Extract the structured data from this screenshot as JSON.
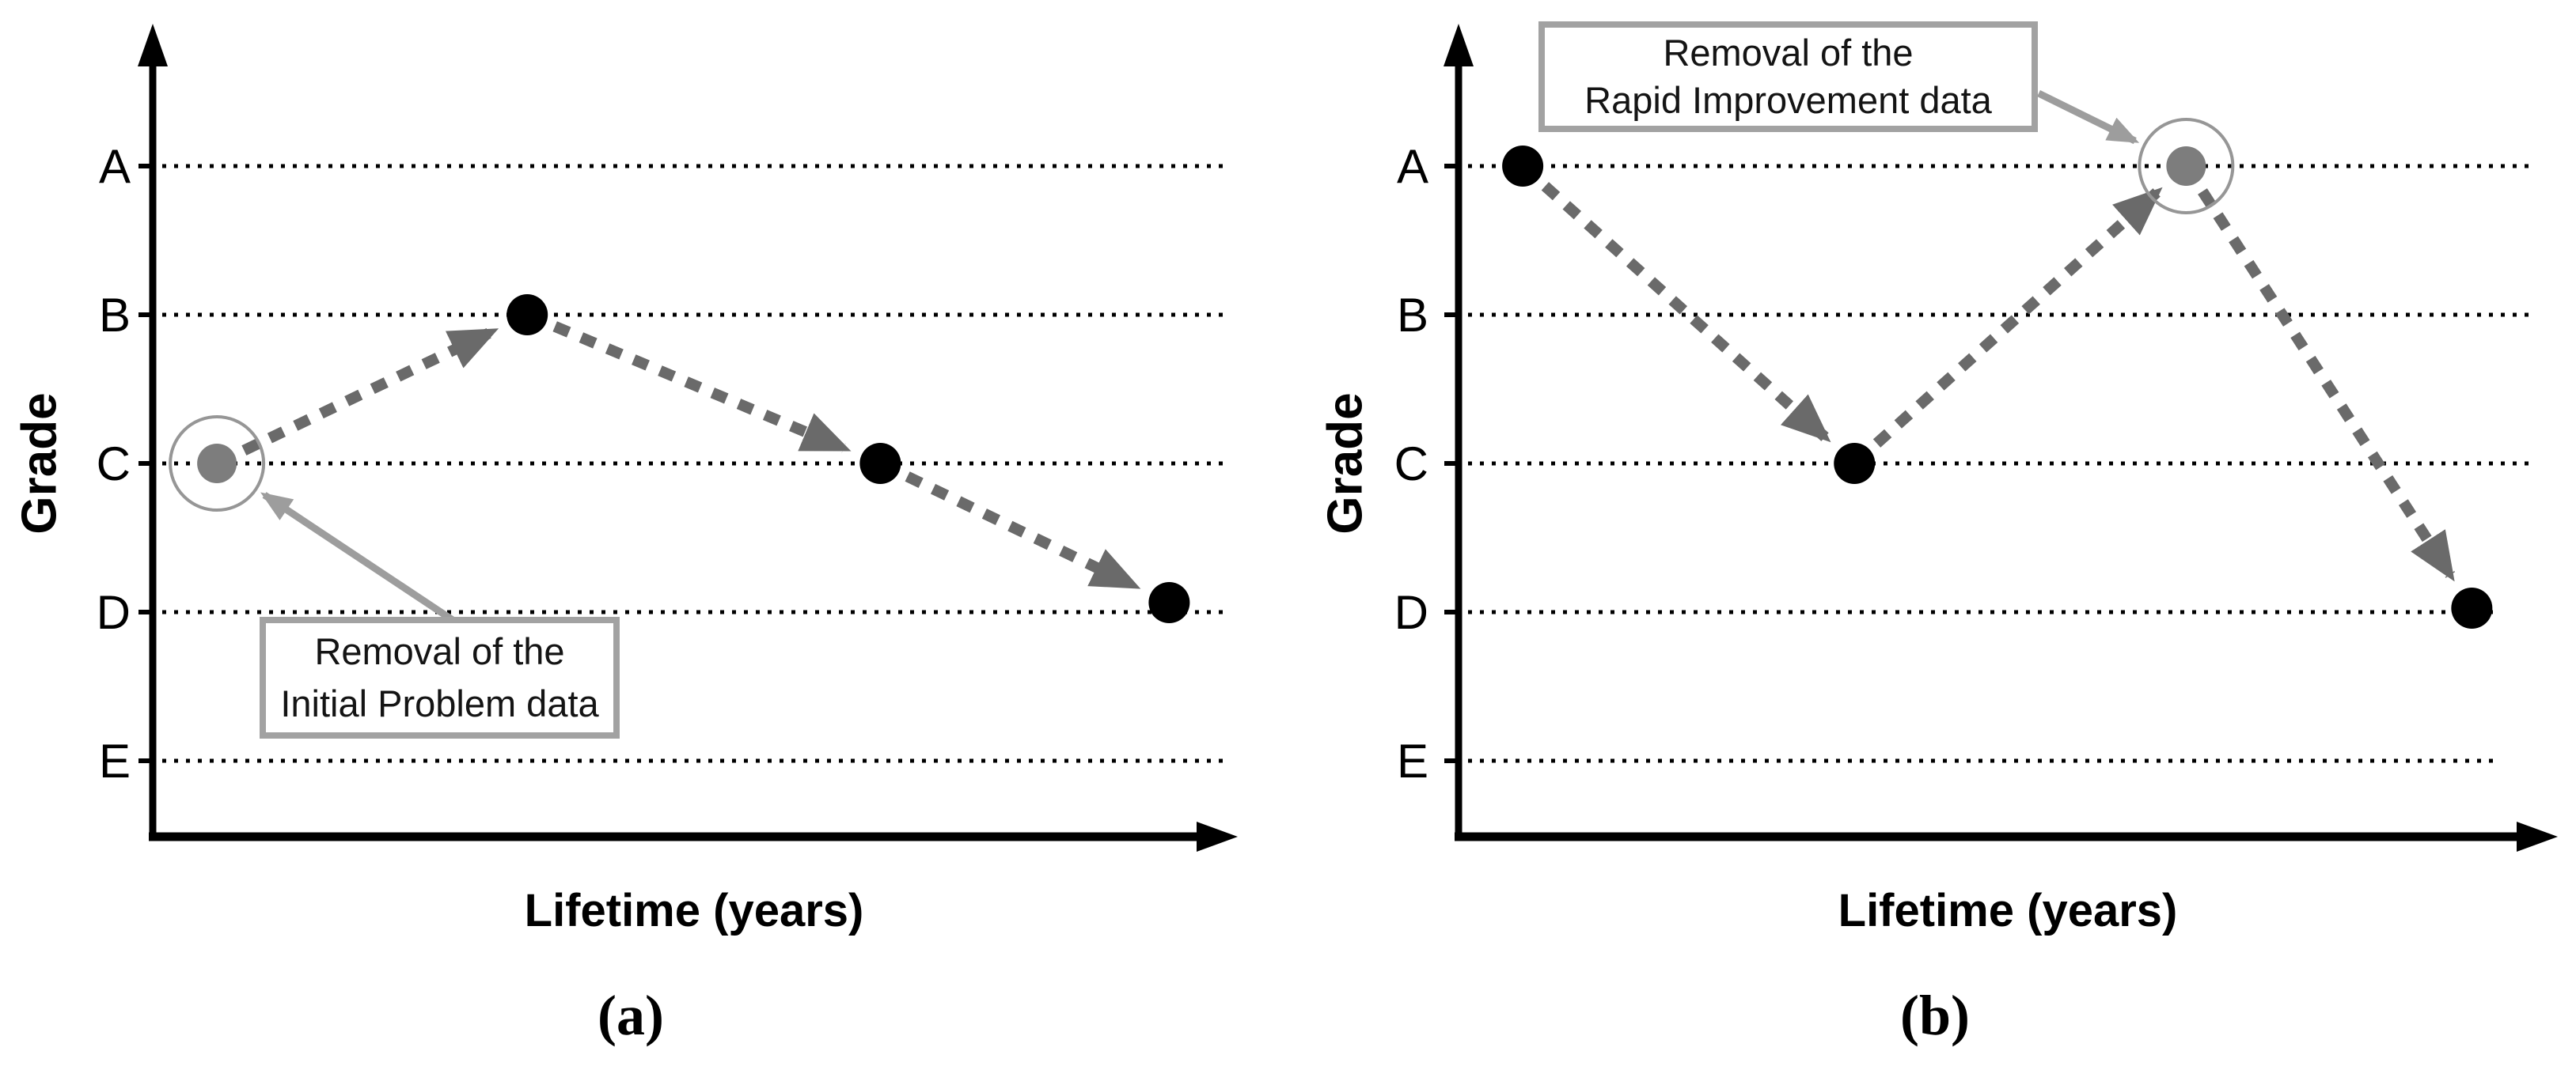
{
  "colors": {
    "background": "#ffffff",
    "axis": "#000000",
    "grid_dots": "#000000",
    "data_point": "#000000",
    "removed_point_fill": "#7d7d7d",
    "removed_ring": "#969696",
    "trend_arrow": "#6a6a6a",
    "annotation_arrow": "#9d9d9d",
    "annotation_box_border": "#a2a2a2",
    "annotation_text": "#141414"
  },
  "chart_data": [
    {
      "type": "line",
      "panel_caption": "(a)",
      "xlabel": "Lifetime (years)",
      "ylabel": "Grade",
      "y_categories": [
        "A",
        "B",
        "C",
        "D",
        "E"
      ],
      "x_tick_labels": [],
      "grid": "dotted horizontal lines at each grade",
      "values": [
        "C",
        "B",
        "C",
        "D"
      ],
      "series": [
        {
          "name": "grade-trend",
          "style": "thick gray dashed arrows between points",
          "points": [
            {
              "x_frac": 0.06,
              "grade": "C",
              "removed": true,
              "y_nudge": 0
            },
            {
              "x_frac": 0.35,
              "grade": "B",
              "removed": false,
              "y_nudge": 0
            },
            {
              "x_frac": 0.68,
              "grade": "C",
              "removed": false,
              "y_nudge": 0
            },
            {
              "x_frac": 0.95,
              "grade": "D",
              "removed": false,
              "y_nudge": -12
            }
          ]
        }
      ],
      "annotation": {
        "line1": "Removal of the",
        "line2": "Initial Problem data"
      }
    },
    {
      "type": "line",
      "panel_caption": "(b)",
      "xlabel": "Lifetime (years)",
      "ylabel": "Grade",
      "y_categories": [
        "A",
        "B",
        "C",
        "D",
        "E"
      ],
      "x_tick_labels": [],
      "grid": "dotted horizontal lines at each grade",
      "values": [
        "A",
        "C",
        "A",
        "D"
      ],
      "series": [
        {
          "name": "grade-trend",
          "style": "thick gray dashed arrows between points",
          "points": [
            {
              "x_frac": 0.06,
              "grade": "A",
              "removed": false,
              "y_nudge": 0
            },
            {
              "x_frac": 0.37,
              "grade": "C",
              "removed": false,
              "y_nudge": 0
            },
            {
              "x_frac": 0.68,
              "grade": "A",
              "removed": true,
              "y_nudge": 0
            },
            {
              "x_frac": 0.947,
              "grade": "D",
              "removed": false,
              "y_nudge": -5
            }
          ]
        }
      ],
      "annotation": {
        "line1": "Removal of the",
        "line2": "Rapid Improvement data"
      }
    }
  ]
}
